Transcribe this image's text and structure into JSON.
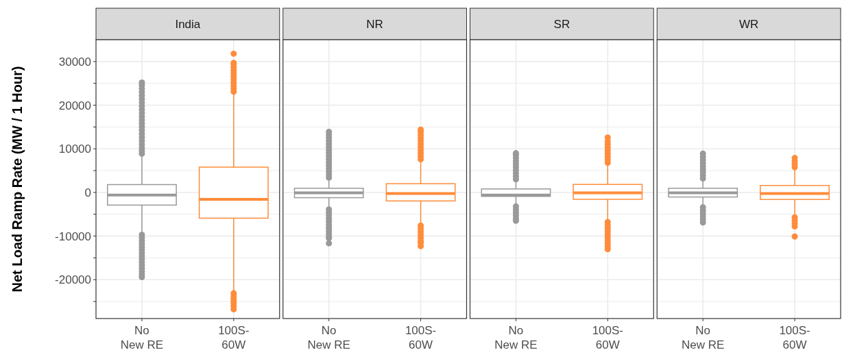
{
  "chart_data": [
    {
      "type": "box",
      "title": "India",
      "ylabel": "Net Load Ramp Rate (MW / 1 Hour)",
      "categories": [
        "No New RE",
        "100S-60W"
      ],
      "colors": [
        "#999999",
        "#ff8c3a"
      ],
      "ylim": [
        -28900,
        35000
      ],
      "yticks": [
        {
          "value": -25000,
          "label": null
        },
        -20000,
        {
          "value": -15000,
          "label": null
        },
        -10000,
        {
          "value": -5000,
          "label": null
        },
        0,
        {
          "value": 5000,
          "label": null
        },
        10000,
        {
          "value": 15000,
          "label": null
        },
        20000,
        {
          "value": 25000,
          "label": null
        },
        30000
      ],
      "grid": true,
      "boxes": [
        {
          "low": -9400,
          "q1": -2900,
          "median": -600,
          "q3": 1800,
          "high": 8400,
          "outliers": [
            8900,
            9500,
            10200,
            11000,
            11800,
            12600,
            13400,
            14200,
            15000,
            15800,
            16600,
            17400,
            18200,
            19000,
            19800,
            20600,
            21400,
            22200,
            23000,
            23800,
            24600,
            25200,
            -9700,
            -10400,
            -11100,
            -11800,
            -12500,
            -13200,
            -13900,
            -14600,
            -15300,
            -16000,
            -16700,
            -17400,
            -18100,
            -18800,
            -19400
          ]
        },
        {
          "low": -22800,
          "q1": -5900,
          "median": -1600,
          "q3": 5800,
          "high": 22600,
          "outliers": [
            23100,
            23800,
            24500,
            25200,
            25900,
            26600,
            27300,
            28000,
            28700,
            29400,
            29700,
            31800,
            -23100,
            -23700,
            -24300,
            -24900,
            -25500,
            -26100,
            -26800
          ]
        }
      ]
    },
    {
      "type": "box",
      "title": "NR",
      "categories": [
        "No New RE",
        "100S-60W"
      ],
      "colors": [
        "#999999",
        "#ff8c3a"
      ],
      "ylim": [
        -28900,
        35000
      ],
      "yticks": [
        {
          "value": -25000,
          "label": null
        },
        -20000,
        {
          "value": -15000,
          "label": null
        },
        -10000,
        {
          "value": -5000,
          "label": null
        },
        0,
        {
          "value": 5000,
          "label": null
        },
        10000,
        {
          "value": 15000,
          "label": null
        },
        20000,
        {
          "value": 25000,
          "label": null
        },
        30000
      ],
      "grid": true,
      "tick_labels": "x",
      "boxes": [
        {
          "low": -3700,
          "q1": -1200,
          "median": -100,
          "q3": 950,
          "high": 3150,
          "outliers": [
            3400,
            4100,
            4800,
            5500,
            6200,
            6900,
            7600,
            8300,
            9000,
            9700,
            10400,
            11100,
            11800,
            12500,
            13200,
            13900,
            -3900,
            -4600,
            -5300,
            -6000,
            -6700,
            -7400,
            -8100,
            -8800,
            -9500,
            -10200,
            -10500,
            -11650
          ]
        },
        {
          "low": -7350,
          "q1": -1950,
          "median": -260,
          "q3": 2000,
          "high": 7350,
          "outliers": [
            7600,
            8300,
            9000,
            9700,
            10400,
            11100,
            11800,
            12500,
            13200,
            13900,
            14400,
            -7600,
            -8300,
            -9000,
            -9700,
            -10400,
            -11100,
            -11550,
            -12300
          ]
        }
      ]
    },
    {
      "type": "box",
      "title": "SR",
      "categories": [
        "No New RE",
        "100S-60W"
      ],
      "colors": [
        "#999999",
        "#ff8c3a"
      ],
      "ylim": [
        -28900,
        35000
      ],
      "yticks": [
        {
          "value": -25000,
          "label": null
        },
        -20000,
        {
          "value": -15000,
          "label": null
        },
        -10000,
        {
          "value": -5000,
          "label": null
        },
        0,
        {
          "value": 5000,
          "label": null
        },
        10000,
        {
          "value": 15000,
          "label": null
        },
        20000,
        {
          "value": 25000,
          "label": null
        },
        30000
      ],
      "grid": true,
      "tick_labels": "x",
      "boxes": [
        {
          "low": -2900,
          "q1": -900,
          "median": -600,
          "q3": 800,
          "high": 2600,
          "outliers": [
            3000,
            3700,
            4400,
            5100,
            5800,
            6500,
            7200,
            7900,
            8600,
            9000,
            -3200,
            -3900,
            -4600,
            -5300,
            -6000,
            -6500
          ]
        },
        {
          "low": -6560,
          "q1": -1575,
          "median": -100,
          "q3": 1840,
          "high": 6560,
          "outliers": [
            6800,
            7500,
            8200,
            8900,
            9600,
            10300,
            11000,
            11700,
            12600,
            -6800,
            -7500,
            -8200,
            -8900,
            -9600,
            -10300,
            -11000,
            -11700,
            -12400,
            -13000
          ]
        }
      ]
    },
    {
      "type": "box",
      "title": "WR",
      "categories": [
        "No New RE",
        "100S-60W"
      ],
      "colors": [
        "#999999",
        "#ff8c3a"
      ],
      "ylim": [
        -28900,
        35000
      ],
      "yticks": [
        {
          "value": -25000,
          "label": null
        },
        -20000,
        {
          "value": -15000,
          "label": null
        },
        -10000,
        {
          "value": -5000,
          "label": null
        },
        0,
        {
          "value": 5000,
          "label": null
        },
        10000,
        {
          "value": 15000,
          "label": null
        },
        20000,
        {
          "value": 25000,
          "label": null
        },
        30000
      ],
      "grid": true,
      "tick_labels": "x",
      "boxes": [
        {
          "low": -3150,
          "q1": -1050,
          "median": -100,
          "q3": 950,
          "high": 3150,
          "outliers": [
            3200,
            3900,
            4600,
            5300,
            6000,
            6700,
            7400,
            8100,
            8900,
            -3400,
            -4100,
            -4800,
            -5500,
            -6200,
            -6900
          ]
        },
        {
          "low": -5500,
          "q1": -1600,
          "median": -260,
          "q3": 1600,
          "high": 5250,
          "outliers": [
            5800,
            6500,
            7200,
            7900,
            -5700,
            -6400,
            -7100,
            -7800,
            -10100
          ]
        }
      ]
    }
  ]
}
